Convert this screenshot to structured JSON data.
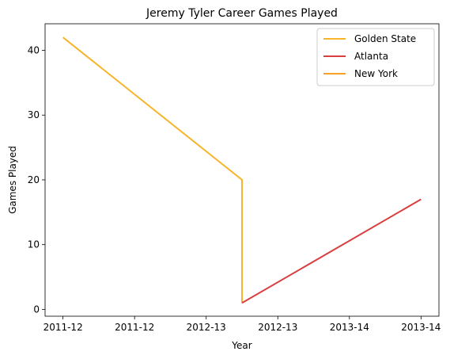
{
  "chart_data": {
    "type": "line",
    "title": "Jeremy Tyler Career Games Played",
    "xlabel": "Year",
    "ylabel": "Games Played",
    "xlim": [
      -0.1,
      2.1
    ],
    "ylim": [
      -1.05,
      44.1
    ],
    "x_ticks": [
      {
        "value": 0.0,
        "label": "2011-12"
      },
      {
        "value": 0.4,
        "label": "2011-12"
      },
      {
        "value": 0.8,
        "label": "2012-13"
      },
      {
        "value": 1.2,
        "label": "2012-13"
      },
      {
        "value": 1.6,
        "label": "2013-14"
      },
      {
        "value": 2.0,
        "label": "2013-14"
      }
    ],
    "y_ticks": [
      0,
      10,
      20,
      30,
      40
    ],
    "legend_position": "top-right",
    "series": [
      {
        "name": "Golden State",
        "color": "#f8b52c",
        "points": [
          [
            0.0,
            42
          ],
          [
            1.0,
            20
          ],
          [
            1.0,
            1
          ]
        ]
      },
      {
        "name": "Atlanta",
        "color": "#d93f3f",
        "points": [
          [
            1.0,
            1
          ],
          [
            2.0,
            17
          ]
        ]
      },
      {
        "name": "New York",
        "color": "#f7a227",
        "points": []
      }
    ]
  }
}
